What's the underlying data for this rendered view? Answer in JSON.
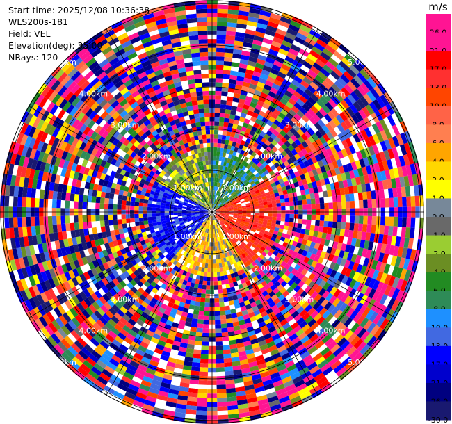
{
  "info": {
    "start_time": "Start time: 2025/12/08 10:36:38",
    "station": "WLS200s-181",
    "field": "Field: VEL",
    "elevation": "Elevation(deg): 35.00",
    "nrays": "NRays: 120"
  },
  "chart_data": {
    "type": "heatmap",
    "projection": "polar (PPI)",
    "field": "VEL",
    "elevation_deg": 35.0,
    "n_rays": 120,
    "range_rings_labels": [
      "1.00km",
      "2.00km",
      "3.00km",
      "4.00km",
      "5.00km"
    ],
    "colorbar": {
      "unit": "m/s",
      "ticks": [
        "26.0",
        "21.0",
        "17.0",
        "13.0",
        "10.0",
        "8.0",
        "6.0",
        "4.0",
        "2.0",
        "1.0",
        "0.0",
        "-1.0",
        "-2.0",
        "-4.0",
        "-6.0",
        "-8.0",
        "-10.0",
        "-13.0",
        "-17.0",
        "-21.0",
        "-26.0",
        "-30.0"
      ],
      "colors": [
        "#ff1493",
        "#ff1493",
        "#ff0000",
        "#ff3030",
        "#ff4500",
        "#ff6347",
        "#ff7f50",
        "#ffa500",
        "#ffd700",
        "#ffff00",
        "#778899",
        "#696969",
        "#9acd32",
        "#6b8e23",
        "#228b22",
        "#2e8b57",
        "#1e90ff",
        "#4169e1",
        "#0000ff",
        "#0000cd",
        "#000080",
        "#191970"
      ]
    }
  }
}
